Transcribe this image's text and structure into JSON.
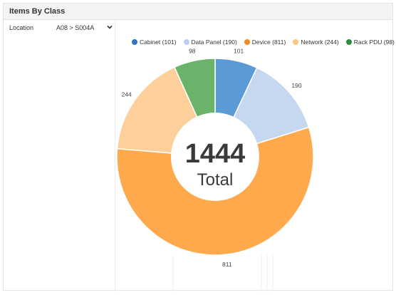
{
  "panel": {
    "title": "Items By Class"
  },
  "filter": {
    "label": "Location",
    "value": "A08 > S004A",
    "chevron_icon": "chevron-down-icon"
  },
  "colors": {
    "cabinet": "#5b9bd5",
    "data_panel": "#c5d8ef",
    "device": "#ffa94d",
    "network": "#fdd09b",
    "rack_pdu": "#6bb36b",
    "cabinet_legend": "#2f75c0",
    "data_panel_legend": "#b8d0ee",
    "device_legend": "#f28a1d",
    "network_legend": "#fcc683",
    "rack_pdu_legend": "#2e8b3e"
  },
  "chart_data": {
    "type": "pie",
    "donut": true,
    "center_value": "1444",
    "center_label": "Total",
    "legend_position": "top",
    "categories": [
      "Cabinet",
      "Data Panel",
      "Device",
      "Network",
      "Rack PDU"
    ],
    "legend_labels": [
      "Cabinet (101)",
      "Data Panel (190)",
      "Device (811)",
      "Network (244)",
      "Rack PDU (98)"
    ],
    "values": [
      101,
      190,
      811,
      244,
      98
    ],
    "data_labels": [
      "101",
      "190",
      "811",
      "244",
      "98"
    ]
  }
}
